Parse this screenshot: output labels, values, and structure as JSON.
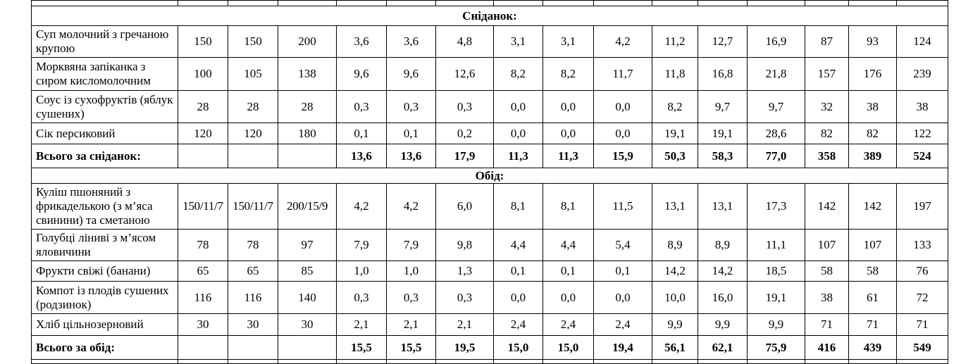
{
  "sections": [
    {
      "title": "Сніданок:",
      "rows": [
        [
          "Суп молочний з гречаною крупою",
          "150",
          "150",
          "200",
          "3,6",
          "3,6",
          "4,8",
          "3,1",
          "3,1",
          "4,2",
          "11,2",
          "12,7",
          "16,9",
          "87",
          "93",
          "124"
        ],
        [
          "Морквяна запіканка з сиром кисломолочним",
          "100",
          "105",
          "138",
          "9,6",
          "9,6",
          "12,6",
          "8,2",
          "8,2",
          "11,7",
          "11,8",
          "16,8",
          "21,8",
          "157",
          "176",
          "239"
        ],
        [
          "Соус із сухофруктів (яблук сушених)",
          "28",
          "28",
          "28",
          "0,3",
          "0,3",
          "0,3",
          "0,0",
          "0,0",
          "0,0",
          "8,2",
          "9,7",
          "9,7",
          "32",
          "38",
          "38"
        ],
        [
          "Сік персиковий",
          "120",
          "120",
          "180",
          "0,1",
          "0,1",
          "0,2",
          "0,0",
          "0,0",
          "0,0",
          "19,1",
          "19,1",
          "28,6",
          "82",
          "82",
          "122"
        ]
      ],
      "total": {
        "label": "Всього за сніданок:",
        "values": [
          "13,6",
          "13,6",
          "17,9",
          "11,3",
          "11,3",
          "15,9",
          "50,3",
          "58,3",
          "77,0",
          "358",
          "389",
          "524"
        ]
      }
    },
    {
      "title": "Обід:",
      "rows": [
        [
          "Куліш пшоняний з фрикаделькою (з м’яса свинини) та сметаною",
          "150/11/7",
          "150/11/7",
          "200/15/9",
          "4,2",
          "4,2",
          "6,0",
          "8,1",
          "8,1",
          "11,5",
          "13,1",
          "13,1",
          "17,3",
          "142",
          "142",
          "197"
        ],
        [
          "Голубці ліниві з м’ясом яловичини",
          "78",
          "78",
          "97",
          "7,9",
          "7,9",
          "9,8",
          "4,4",
          "4,4",
          "5,4",
          "8,9",
          "8,9",
          "11,1",
          "107",
          "107",
          "133"
        ],
        [
          "Фрукти свіжі (банани)",
          "65",
          "65",
          "85",
          "1,0",
          "1,0",
          "1,3",
          "0,1",
          "0,1",
          "0,1",
          "14,2",
          "14,2",
          "18,5",
          "58",
          "58",
          "76"
        ],
        [
          "Компот із плодів сушених (родзинок)",
          "116",
          "116",
          "140",
          "0,3",
          "0,3",
          "0,3",
          "0,0",
          "0,0",
          "0,0",
          "10,0",
          "16,0",
          "19,1",
          "38",
          "61",
          "72"
        ],
        [
          "Хліб цільнозерновий",
          "30",
          "30",
          "30",
          "2,1",
          "2,1",
          "2,1",
          "2,4",
          "2,4",
          "2,4",
          "9,9",
          "9,9",
          "9,9",
          "71",
          "71",
          "71"
        ]
      ],
      "total": {
        "label": "Всього за обід:",
        "values": [
          "15,5",
          "15,5",
          "19,5",
          "15,0",
          "15,0",
          "19,4",
          "56,1",
          "62,1",
          "75,9",
          "416",
          "439",
          "549"
        ]
      }
    }
  ]
}
